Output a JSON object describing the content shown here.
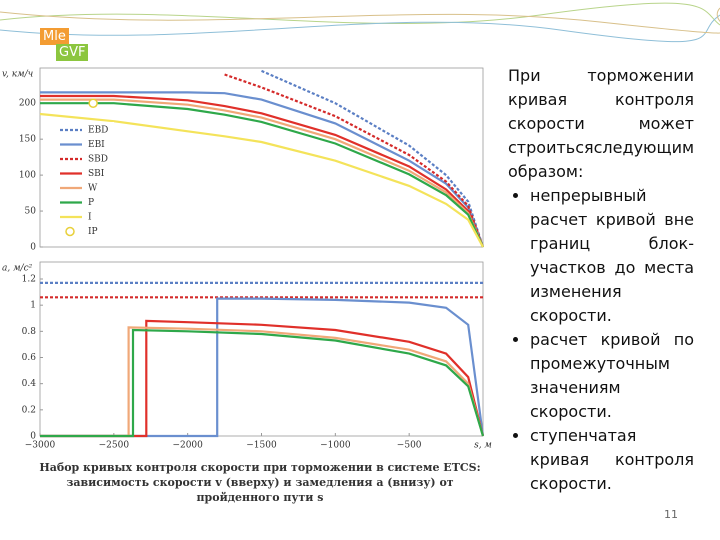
{
  "logo": [
    "Mle",
    "GVF"
  ],
  "chart_data": [
    {
      "type": "line",
      "ylabel": "v, км/ч",
      "x": [
        -3000,
        -2500,
        -2000,
        -1750,
        -1500,
        -1000,
        -500,
        -250,
        -100,
        0
      ],
      "xlim": [
        -3000,
        0
      ],
      "ylim": [
        0,
        249
      ],
      "yticks": [
        0,
        50,
        100,
        150,
        200
      ],
      "grid": false,
      "legend": "left",
      "series": [
        {
          "name": "EBD",
          "color": "#5b7fc4",
          "style": "dotted",
          "values": [
            null,
            null,
            null,
            null,
            245,
            200,
            141,
            100,
            63,
            0
          ]
        },
        {
          "name": "EBI",
          "color": "#6a8fcf",
          "values": [
            215,
            215,
            215,
            214,
            205,
            172,
            120,
            88,
            55,
            0
          ]
        },
        {
          "name": "SBD",
          "color": "#d42a2a",
          "style": "dotted",
          "values": [
            null,
            null,
            null,
            240,
            222,
            182,
            128,
            91,
            57,
            0
          ]
        },
        {
          "name": "SBI",
          "color": "#e0302a",
          "values": [
            210,
            210,
            204,
            196,
            186,
            156,
            112,
            80,
            50,
            0
          ]
        },
        {
          "name": "W",
          "color": "#f0a878",
          "values": [
            205,
            205,
            198,
            190,
            180,
            150,
            106,
            76,
            47,
            0
          ]
        },
        {
          "name": "P",
          "color": "#2ea84a",
          "values": [
            200,
            200,
            192,
            184,
            174,
            144,
            101,
            72,
            45,
            0
          ]
        },
        {
          "name": "I",
          "color": "#f4e35a",
          "values": [
            185,
            175,
            161,
            154,
            146,
            120,
            85,
            60,
            38,
            0
          ]
        },
        {
          "name": "IP",
          "color": "#e8d03a",
          "marker": "circle",
          "x": [
            -2640
          ],
          "values": [
            200
          ]
        }
      ]
    },
    {
      "type": "line",
      "ylabel": "a, м/с²",
      "xlabel": "s, м",
      "xlim": [
        -3000,
        0
      ],
      "ylim": [
        0,
        1.33
      ],
      "yticks": [
        0,
        0.2,
        0.4,
        0.6,
        0.8,
        1,
        1.2
      ],
      "grid": false,
      "xticks": [
        {
          "value": -3000,
          "label": "−3000"
        },
        {
          "value": -2500,
          "label": "−2500"
        },
        {
          "value": -2000,
          "label": "−2000"
        },
        {
          "value": -1500,
          "label": "−1500"
        },
        {
          "value": -1000,
          "label": "−1000"
        },
        {
          "value": -500,
          "label": "−500"
        }
      ],
      "series": [
        {
          "color": "#5b7fc4",
          "style": "dotted",
          "x": [
            -3000,
            0
          ],
          "values": [
            1.17,
            1.17
          ]
        },
        {
          "color": "#d42a2a",
          "style": "dotted",
          "x": [
            -3000,
            0
          ],
          "values": [
            1.06,
            1.06
          ]
        },
        {
          "color": "#6a8fcf",
          "x": [
            -3000,
            -1800,
            -1800,
            -1500,
            -1000,
            -500,
            -250,
            -100,
            0
          ],
          "values": [
            0,
            0,
            1.05,
            1.05,
            1.04,
            1.02,
            0.98,
            0.85,
            0
          ]
        },
        {
          "color": "#e0302a",
          "x": [
            -3000,
            -2280,
            -2280,
            -2000,
            -1500,
            -1000,
            -500,
            -250,
            -100,
            0
          ],
          "values": [
            0,
            0,
            0.88,
            0.87,
            0.85,
            0.81,
            0.72,
            0.63,
            0.45,
            0
          ]
        },
        {
          "color": "#f0a878",
          "x": [
            -3000,
            -2400,
            -2400,
            -2000,
            -1500,
            -1000,
            -500,
            -250,
            -100,
            0
          ],
          "values": [
            0,
            0,
            0.83,
            0.82,
            0.8,
            0.75,
            0.66,
            0.57,
            0.4,
            0
          ]
        },
        {
          "color": "#2ea84a",
          "x": [
            -3000,
            -2370,
            -2370,
            -2000,
            -1500,
            -1000,
            -500,
            -250,
            -100,
            0
          ],
          "values": [
            0,
            0,
            0.81,
            0.8,
            0.78,
            0.73,
            0.63,
            0.54,
            0.38,
            0
          ]
        }
      ]
    }
  ],
  "caption": [
    "Набор кривых контроля скорости при торможении в системе ETCS:",
    "зависимость скорости v (вверху) и замедления a (внизу) от пройденного пути s"
  ],
  "text": {
    "intro": "При торможении кривая контроля скорости может строитьсяследующим образом:",
    "bullets": [
      "непрерывный расчет кривой вне границ блок-участков до места изменения скорости.",
      "расчет кривой по промежуточным значениям скорости.",
      "ступенчатая кривая контроля скорости."
    ]
  },
  "page_number": "11"
}
